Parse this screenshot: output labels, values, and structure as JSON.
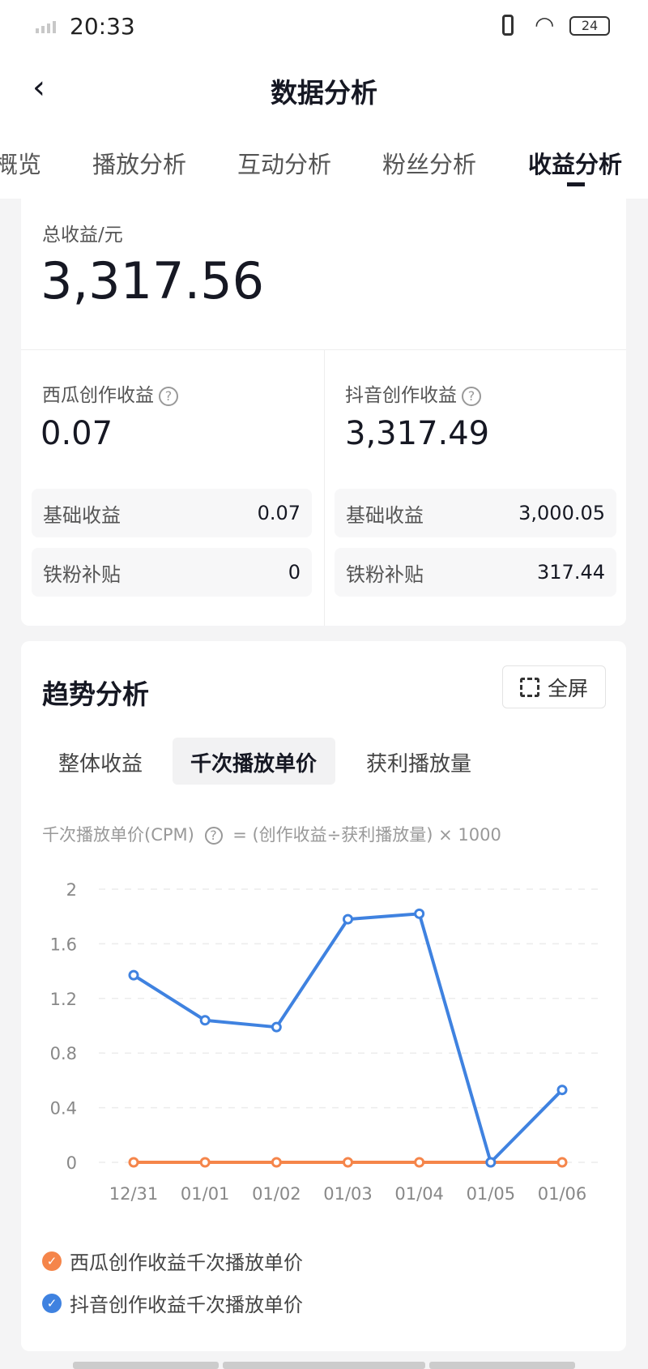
{
  "status_bar": {
    "time": "20:33",
    "battery": "24"
  },
  "header": {
    "title": "数据分析",
    "back_icon": "chevron-left-icon"
  },
  "tabs": [
    "概览",
    "播放分析",
    "互动分析",
    "粉丝分析",
    "收益分析"
  ],
  "active_tab": "收益分析",
  "total": {
    "label": "总收益/元",
    "value": "3,317.56"
  },
  "xigua": {
    "label": "西瓜创作收益",
    "value": "0.07",
    "rows": [
      {
        "k": "基础收益",
        "v": "0.07"
      },
      {
        "k": "铁粉补贴",
        "v": "0"
      }
    ]
  },
  "douyin": {
    "label": "抖音创作收益",
    "value": "3,317.49",
    "rows": [
      {
        "k": "基础收益",
        "v": "3,000.05"
      },
      {
        "k": "铁粉补贴",
        "v": "317.44"
      }
    ]
  },
  "trend": {
    "title": "趋势分析",
    "fullscreen": "全屏",
    "subtabs": [
      "整体收益",
      "千次播放单价",
      "获利播放量"
    ],
    "active_subtab": "千次播放单价",
    "note_label": "千次播放单价(CPM)",
    "note_formula": "= (创作收益÷获利播放量) × 1000"
  },
  "chart_data": {
    "type": "line",
    "categories": [
      "12/31",
      "01/01",
      "01/02",
      "01/03",
      "01/04",
      "01/05",
      "01/06"
    ],
    "yticks": [
      "0",
      "0.4",
      "0.8",
      "1.2",
      "1.6",
      "2"
    ],
    "ylim": [
      0,
      2
    ],
    "grid": true,
    "legend": "bottom",
    "series": [
      {
        "name": "西瓜创作收益千次播放单价",
        "color": "#f5854a",
        "values": [
          0,
          0,
          0,
          0,
          0,
          0,
          0
        ]
      },
      {
        "name": "抖音创作收益千次播放单价",
        "color": "#3f82e0",
        "values": [
          1.37,
          1.04,
          0.99,
          1.78,
          1.82,
          0,
          0.53
        ]
      }
    ]
  }
}
